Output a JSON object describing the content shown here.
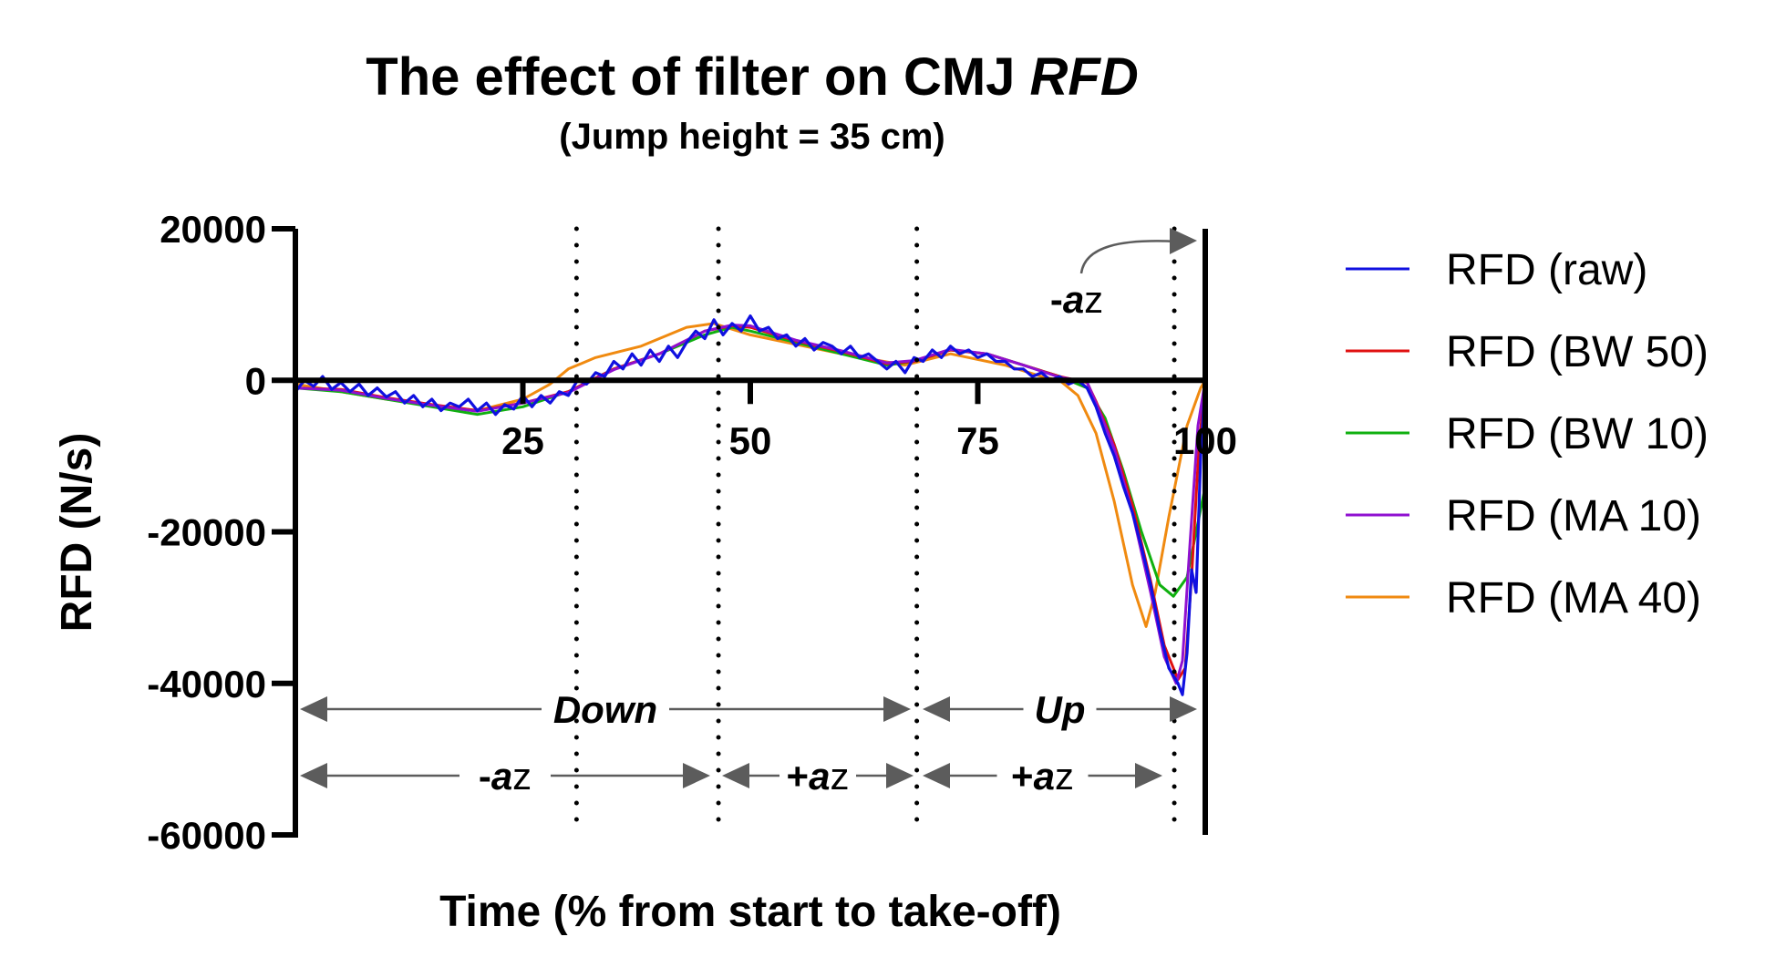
{
  "chart_data": {
    "type": "line",
    "title": "The effect of filter on CMJ ",
    "title_italic": "RFD",
    "subtitle": "(Jump height = 35 cm)",
    "xlabel": "Time (% from start to take-off)",
    "ylabel": "RFD (N/s)",
    "xlim": [
      0,
      100
    ],
    "ylim": [
      -60000,
      20000
    ],
    "x_ticks": [
      "25",
      "50",
      "75",
      "100"
    ],
    "y_ticks": [
      "20000",
      "0",
      "-20000",
      "-40000",
      "-60000"
    ],
    "grid": false,
    "legend_position": "right",
    "phase_lines_x": [
      30.9,
      46.5,
      68.3,
      96.6
    ],
    "annotations": {
      "top_az": "-az",
      "down": "Down",
      "up": "Up",
      "phase1": "-az",
      "phase2": "+az",
      "phase3": "+az"
    },
    "series": [
      {
        "name": "RFD (raw)",
        "color": "#1010e0",
        "x": [
          0,
          1,
          2,
          3,
          4,
          5,
          6,
          7,
          8,
          9,
          10,
          11,
          12,
          13,
          14,
          15,
          16,
          17,
          18,
          19,
          20,
          21,
          22,
          23,
          24,
          25,
          26,
          27,
          28,
          29,
          30,
          31,
          32,
          33,
          34,
          35,
          36,
          37,
          38,
          39,
          40,
          41,
          42,
          43,
          44,
          45,
          46,
          47,
          48,
          49,
          50,
          51,
          52,
          53,
          54,
          55,
          56,
          57,
          58,
          59,
          60,
          61,
          62,
          63,
          64,
          65,
          66,
          67,
          68,
          69,
          70,
          71,
          72,
          73,
          74,
          75,
          76,
          77,
          78,
          79,
          80,
          81,
          82,
          83,
          84,
          85,
          86,
          87,
          88,
          89,
          90,
          91,
          92,
          93,
          94,
          95,
          96,
          97,
          97.5,
          98,
          98.5,
          99,
          99.5,
          100
        ],
        "y": [
          -1500,
          0,
          -800,
          500,
          -1200,
          -300,
          -1500,
          -500,
          -2000,
          -1000,
          -2200,
          -1500,
          -3000,
          -2000,
          -3500,
          -2500,
          -4000,
          -3000,
          -3500,
          -2500,
          -4000,
          -3000,
          -4500,
          -3200,
          -3800,
          -2000,
          -3500,
          -2000,
          -3000,
          -1500,
          -2000,
          0,
          -500,
          1000,
          500,
          2500,
          1500,
          3500,
          2000,
          4000,
          2500,
          4500,
          3000,
          5000,
          6500,
          5500,
          8000,
          6000,
          7500,
          6500,
          8500,
          6500,
          7000,
          5500,
          6000,
          4500,
          5500,
          4000,
          5000,
          4500,
          3500,
          4500,
          3000,
          3500,
          2500,
          1500,
          2500,
          1000,
          3000,
          2500,
          4000,
          3000,
          4500,
          3500,
          4000,
          3000,
          3500,
          2500,
          2500,
          1500,
          1500,
          500,
          1000,
          0,
          500,
          -500,
          0,
          -1000,
          -3500,
          -7000,
          -10000,
          -14000,
          -17500,
          -22000,
          -27000,
          -33000,
          -38000,
          -40000,
          -41500,
          -36000,
          -25000,
          -28000,
          -10000,
          0
        ]
      },
      {
        "name": "RFD (BW 50)",
        "color": "#e01010",
        "x": [
          0,
          5,
          10,
          15,
          20,
          25,
          30,
          35,
          40,
          45,
          48,
          50,
          55,
          60,
          65,
          68,
          72,
          76,
          80,
          84,
          87,
          88,
          90,
          92,
          94,
          95.5,
          97,
          97.8,
          98.5,
          99.3,
          100
        ],
        "y": [
          -1000,
          -1200,
          -2300,
          -3200,
          -4000,
          -3000,
          -1500,
          1500,
          3500,
          6500,
          7200,
          7000,
          5200,
          3800,
          2200,
          2500,
          4000,
          3500,
          2000,
          500,
          -300,
          -2800,
          -8500,
          -16500,
          -26500,
          -35000,
          -39500,
          -38000,
          -26000,
          -9000,
          0
        ]
      },
      {
        "name": "RFD (BW 10)",
        "color": "#10b010",
        "x": [
          0,
          5,
          10,
          15,
          20,
          25,
          30,
          35,
          40,
          45,
          48,
          50,
          55,
          60,
          65,
          68,
          72,
          76,
          80,
          84,
          87,
          89,
          91,
          93,
          95,
          96.5,
          98,
          99,
          100
        ],
        "y": [
          -1000,
          -1500,
          -2500,
          -3500,
          -4500,
          -3500,
          -1500,
          1500,
          3500,
          6000,
          7000,
          6500,
          5000,
          3500,
          2000,
          2500,
          4000,
          3500,
          2000,
          500,
          -1000,
          -5000,
          -12000,
          -20000,
          -27000,
          -28500,
          -26000,
          -20000,
          -14000
        ]
      },
      {
        "name": "RFD (MA 10)",
        "color": "#9010d0",
        "x": [
          0,
          5,
          10,
          15,
          20,
          25,
          30,
          35,
          40,
          45,
          48,
          50,
          55,
          60,
          65,
          68,
          72,
          76,
          80,
          84,
          87,
          88,
          90,
          92,
          94,
          95.5,
          96.8,
          97.5,
          98.3,
          99.2,
          100
        ],
        "y": [
          -1000,
          -1300,
          -2400,
          -3300,
          -4100,
          -3000,
          -1600,
          1400,
          3500,
          6500,
          7300,
          7200,
          5300,
          3900,
          2300,
          2600,
          4100,
          3500,
          2000,
          400,
          -200,
          -3000,
          -9000,
          -17500,
          -28000,
          -36500,
          -40000,
          -37000,
          -22000,
          -6000,
          0
        ]
      },
      {
        "name": "RFD (MA 40)",
        "color": "#f08a10",
        "x": [
          0,
          10,
          20,
          25,
          28,
          30,
          33,
          38,
          43,
          46,
          50,
          60,
          67,
          72,
          78,
          82,
          84,
          86,
          88,
          90,
          92,
          93.5,
          94.5,
          96,
          98,
          99.5,
          100
        ],
        "y": [
          -500,
          -2500,
          -4000,
          -2500,
          -500,
          1500,
          3000,
          4500,
          7000,
          7500,
          6000,
          3500,
          2000,
          3500,
          2000,
          500,
          0,
          -2000,
          -7000,
          -16000,
          -27000,
          -32500,
          -28000,
          -18000,
          -6000,
          -1000,
          0
        ]
      }
    ]
  }
}
